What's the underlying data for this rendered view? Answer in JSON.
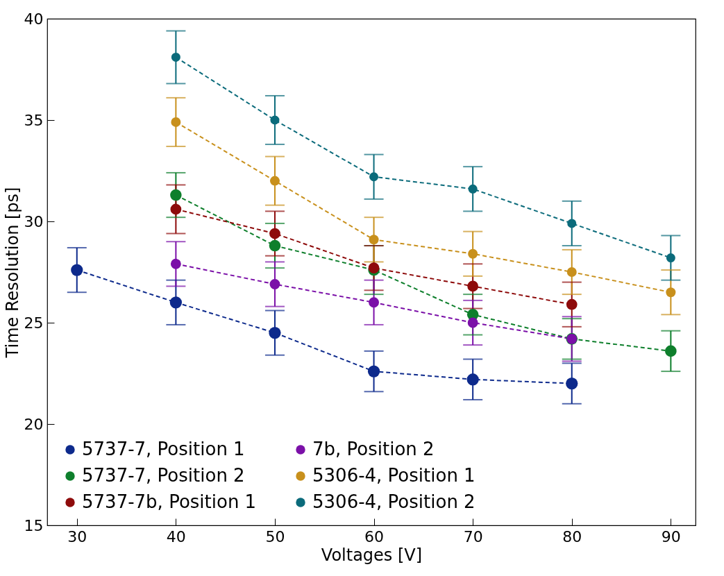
{
  "chart_data": {
    "type": "line",
    "xlabel": "Voltages [V]",
    "ylabel": "Time Resolution [ps]",
    "xlim": [
      27,
      92.5
    ],
    "xticks": [
      30,
      40,
      50,
      60,
      70,
      80,
      90
    ],
    "ylim": [
      15,
      40
    ],
    "yticks": [
      15,
      20,
      25,
      30,
      35,
      40
    ],
    "grid": false,
    "legend": "bottom left",
    "marker": "circle",
    "line_style": "dashed",
    "series": [
      {
        "name": "5737-7, Position 1",
        "color": "#0d2a8c",
        "x": [
          30,
          40,
          50,
          60,
          70,
          80
        ],
        "values": [
          27.6,
          26.0,
          24.5,
          22.6,
          22.2,
          22.0
        ],
        "errors": [
          1.1,
          1.1,
          1.1,
          1.0,
          1.0,
          1.0
        ]
      },
      {
        "name": "5737-7, Position 2",
        "color": "#0e7f2c",
        "x": [
          40,
          50,
          60,
          70,
          80,
          90
        ],
        "values": [
          31.3,
          28.8,
          27.6,
          25.4,
          24.2,
          23.6
        ],
        "errors": [
          1.1,
          1.1,
          1.2,
          1.0,
          1.0,
          1.0
        ]
      },
      {
        "name": "5737-7b, Position 1",
        "color": "#8e0b0b",
        "x": [
          40,
          50,
          60,
          70,
          80
        ],
        "values": [
          30.6,
          29.4,
          27.7,
          26.8,
          25.9
        ],
        "errors": [
          1.2,
          1.1,
          1.1,
          1.1,
          1.1
        ]
      },
      {
        "name": "7b, Position 2",
        "color": "#7b10a8",
        "x": [
          40,
          50,
          60,
          70,
          80
        ],
        "values": [
          27.9,
          26.9,
          26.0,
          25.0,
          24.2
        ],
        "errors": [
          1.1,
          1.1,
          1.1,
          1.1,
          1.1
        ]
      },
      {
        "name": "5306-4, Position 1",
        "color": "#c8901c",
        "x": [
          40,
          50,
          60,
          70,
          80,
          90
        ],
        "values": [
          34.9,
          32.0,
          29.1,
          28.4,
          27.5,
          26.5
        ],
        "errors": [
          1.2,
          1.2,
          1.1,
          1.1,
          1.1,
          1.1
        ]
      },
      {
        "name": "5306-4, Position 2",
        "color": "#0b6b7b",
        "x": [
          40,
          50,
          60,
          70,
          80,
          90
        ],
        "values": [
          38.1,
          35.0,
          32.2,
          31.6,
          29.9,
          28.2
        ],
        "errors": [
          1.3,
          1.2,
          1.1,
          1.1,
          1.1,
          1.1
        ]
      }
    ]
  }
}
